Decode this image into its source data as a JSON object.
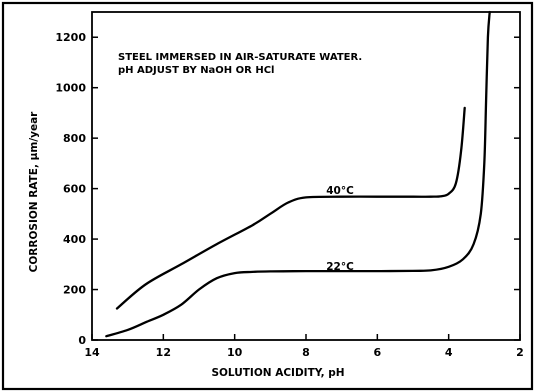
{
  "chart_data": {
    "type": "line",
    "annotation_lines": [
      "STEEL IMMERSED IN AIR-SATURATE WATER.",
      "pH ADJUST BY NaOH OR HCl"
    ],
    "xlabel": "SOLUTION ACIDITY, pH",
    "ylabel": "CORROSION RATE, μm/year",
    "xlim": [
      14,
      2
    ],
    "ylim": [
      0,
      1300
    ],
    "xticks": [
      14,
      12,
      10,
      8,
      6,
      4,
      2
    ],
    "yticks": [
      0,
      200,
      400,
      600,
      800,
      1000,
      1200
    ],
    "grid": false,
    "legend": "none",
    "series": [
      {
        "name": "40°C",
        "x": [
          13.3,
          12.5,
          11.5,
          10.5,
          9.5,
          9.0,
          8.5,
          8.0,
          7.0,
          6.0,
          5.0,
          4.5,
          4.2,
          4.0,
          3.8,
          3.65,
          3.55
        ],
        "y": [
          125,
          220,
          300,
          380,
          455,
          500,
          545,
          565,
          568,
          568,
          568,
          568,
          570,
          580,
          620,
          750,
          920
        ]
      },
      {
        "name": "22°C",
        "x": [
          13.6,
          13.0,
          12.5,
          12.0,
          11.5,
          11.0,
          10.5,
          10.0,
          9.5,
          9.0,
          8.0,
          7.0,
          6.0,
          5.0,
          4.5,
          4.0,
          3.6,
          3.3,
          3.1,
          3.0,
          2.95,
          2.9,
          2.85
        ],
        "y": [
          15,
          40,
          70,
          100,
          140,
          200,
          245,
          265,
          270,
          272,
          273,
          273,
          273,
          274,
          276,
          290,
          320,
          380,
          500,
          700,
          950,
          1200,
          1320
        ]
      }
    ]
  }
}
